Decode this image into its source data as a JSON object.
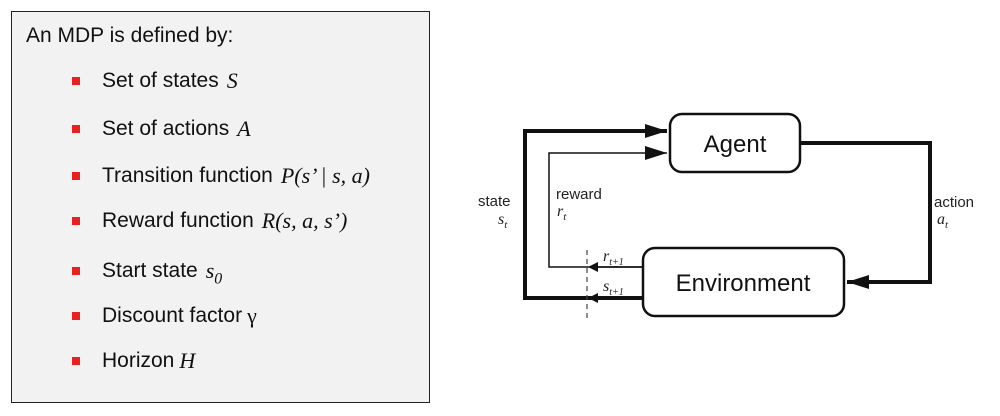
{
  "mdp_definition": {
    "heading": "An MDP is defined by:",
    "items": [
      {
        "label": "Set of states",
        "symbol": "S"
      },
      {
        "label": "Set of actions",
        "symbol": "A"
      },
      {
        "label": "Transition function",
        "symbol": "P(s’ | s, a)"
      },
      {
        "label": "Reward function",
        "symbol": "R(s, a, s’)"
      },
      {
        "label": "Start state",
        "symbol": "s",
        "symbol_sub": "0"
      },
      {
        "label": "Discount factor",
        "symbol": "γ"
      },
      {
        "label": "Horizon",
        "symbol": "H"
      }
    ],
    "bullet_color": "#e8201f"
  },
  "diagram": {
    "agent_label": "Agent",
    "environment_label": "Environment",
    "action_word": "action",
    "action_symbol": "a",
    "action_sub": "t",
    "state_word": "state",
    "state_symbol": "s",
    "state_sub": "t",
    "reward_word": "reward",
    "reward_symbol": "r",
    "reward_sub": "t",
    "next_reward_symbol": "r",
    "next_reward_sub": "t+1",
    "next_state_symbol": "s",
    "next_state_sub": "t+1"
  }
}
